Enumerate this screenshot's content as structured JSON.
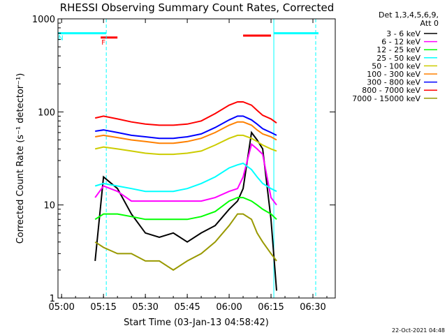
{
  "chart_data": {
    "type": "line",
    "title": "RHESSI Observing Summary Count Rates, Corrected",
    "xlabel": "Start Time (03-Jan-13 04:58:42)",
    "ylabel": "Corrected Count Rate (s⁻¹ detector⁻¹)",
    "y_scale": "log",
    "ylim": [
      1,
      1000
    ],
    "xlim": [
      "04:58:42",
      "06:38:00"
    ],
    "x_ticks": [
      "05:00",
      "05:15",
      "05:30",
      "05:45",
      "06:00",
      "06:15",
      "06:30"
    ],
    "y_ticks": [
      "1",
      "10",
      "100",
      "1000"
    ],
    "grid": false,
    "legend_position": "right",
    "legend_header": [
      "Det 1,3,4,5,6,9,",
      "Att 0"
    ],
    "footer": "22-Oct-2021 04:48",
    "flags": [
      {
        "label": "F",
        "color": "#ff0000",
        "level": 630,
        "segments": [
          [
            "05:14",
            "05:20"
          ]
        ]
      },
      {
        "label": "N",
        "color": "#00ffff",
        "level": 700,
        "segments": [
          [
            "04:58:42",
            "05:16"
          ],
          [
            "06:16",
            "06:32"
          ]
        ]
      },
      {
        "label": "",
        "color": "#ff0000",
        "level": 660,
        "segments": [
          [
            "06:05",
            "06:15"
          ]
        ]
      }
    ],
    "markers": [
      {
        "time": "05:16:00",
        "style": "dashed",
        "color": "#00ffff"
      },
      {
        "time": "06:16:00",
        "style": "solid",
        "color": "#00ffff"
      },
      {
        "time": "06:31:00",
        "style": "dashed",
        "color": "#00ffff"
      }
    ],
    "x": [
      "05:12",
      "05:15",
      "05:20",
      "05:25",
      "05:30",
      "05:35",
      "05:40",
      "05:45",
      "05:50",
      "05:55",
      "06:00",
      "06:03",
      "06:05",
      "06:08",
      "06:10",
      "06:12",
      "06:15",
      "06:17"
    ],
    "series": [
      {
        "name": "3 - 6 keV",
        "color": "#000000",
        "values": [
          2.5,
          20,
          15,
          8,
          5,
          4.5,
          5,
          4,
          5,
          6,
          9,
          11,
          15,
          60,
          50,
          40,
          7,
          1.2
        ]
      },
      {
        "name": "6 - 12 keV",
        "color": "#ff00ff",
        "values": [
          12,
          16,
          14,
          11,
          11,
          11,
          11,
          11,
          11,
          12,
          14,
          15,
          20,
          45,
          40,
          35,
          12,
          10
        ]
      },
      {
        "name": "12 - 25 keV",
        "color": "#00ff00",
        "values": [
          7,
          8,
          8,
          7.5,
          7,
          7,
          7,
          7,
          7.5,
          8.5,
          11,
          12,
          12,
          11,
          10,
          9,
          8,
          7
        ]
      },
      {
        "name": "25 - 50 keV",
        "color": "#00ffff",
        "values": [
          16,
          17,
          16,
          15,
          14,
          14,
          14,
          15,
          17,
          20,
          25,
          27,
          28,
          24,
          20,
          17,
          15,
          14
        ]
      },
      {
        "name": "50 - 100 keV",
        "color": "#cccc00",
        "values": [
          40,
          42,
          40,
          38,
          36,
          35,
          35,
          36,
          38,
          44,
          52,
          56,
          56,
          52,
          48,
          44,
          40,
          38
        ]
      },
      {
        "name": "100 - 300 keV",
        "color": "#ff8000",
        "values": [
          54,
          56,
          53,
          50,
          48,
          46,
          46,
          48,
          52,
          60,
          72,
          78,
          78,
          72,
          64,
          58,
          54,
          50
        ]
      },
      {
        "name": "300 - 800 keV",
        "color": "#0000ff",
        "values": [
          62,
          64,
          60,
          56,
          54,
          52,
          52,
          54,
          58,
          68,
          82,
          90,
          90,
          82,
          74,
          66,
          60,
          56
        ]
      },
      {
        "name": "800 - 7000 keV",
        "color": "#ff0000",
        "values": [
          86,
          90,
          84,
          78,
          74,
          72,
          72,
          74,
          80,
          96,
          118,
          128,
          128,
          118,
          104,
          92,
          84,
          76
        ]
      },
      {
        "name": "7000 - 15000 keV",
        "color": "#999900",
        "values": [
          4,
          3.5,
          3,
          3,
          2.5,
          2.5,
          2,
          2.5,
          3,
          4,
          6,
          8,
          8,
          7,
          5,
          4,
          3,
          2.5
        ]
      }
    ]
  }
}
